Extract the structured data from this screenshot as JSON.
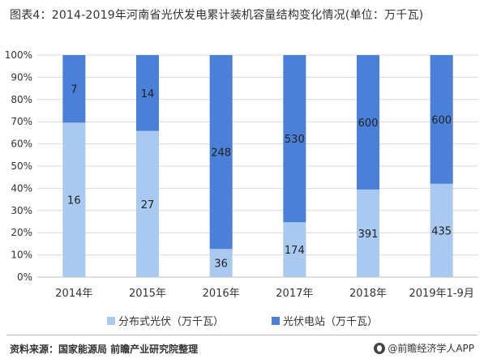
{
  "title": "图表4：2014-2019年河南省光伏发电累计装机容量结构变化情况(单位：万千瓦)",
  "footer": {
    "source": "资料来源：国家能源局 前瞻产业研究院整理",
    "brand": "@前瞻经济学人APP"
  },
  "colors": {
    "distributed": "#a9c9f0",
    "station": "#4a80d8",
    "grid": "#d9d9d9",
    "axis": "#bfbfbf",
    "label": "#333333"
  },
  "chart_data": {
    "type": "bar",
    "stacked": "percent",
    "categories": [
      "2014年",
      "2015年",
      "2016年",
      "2017年",
      "2018年",
      "2019年1-9月"
    ],
    "series": [
      {
        "name": "分布式光伏（万千瓦）",
        "values": [
          16,
          27,
          36,
          174,
          391,
          435
        ]
      },
      {
        "name": "光伏电站（万千瓦）",
        "values": [
          7,
          14,
          248,
          530,
          600,
          600
        ]
      }
    ],
    "ylim": [
      0,
      100
    ],
    "yticks": [
      "0%",
      "10%",
      "20%",
      "30%",
      "40%",
      "50%",
      "60%",
      "70%",
      "80%",
      "90%",
      "100%"
    ],
    "grid": true,
    "legend_position": "bottom"
  }
}
